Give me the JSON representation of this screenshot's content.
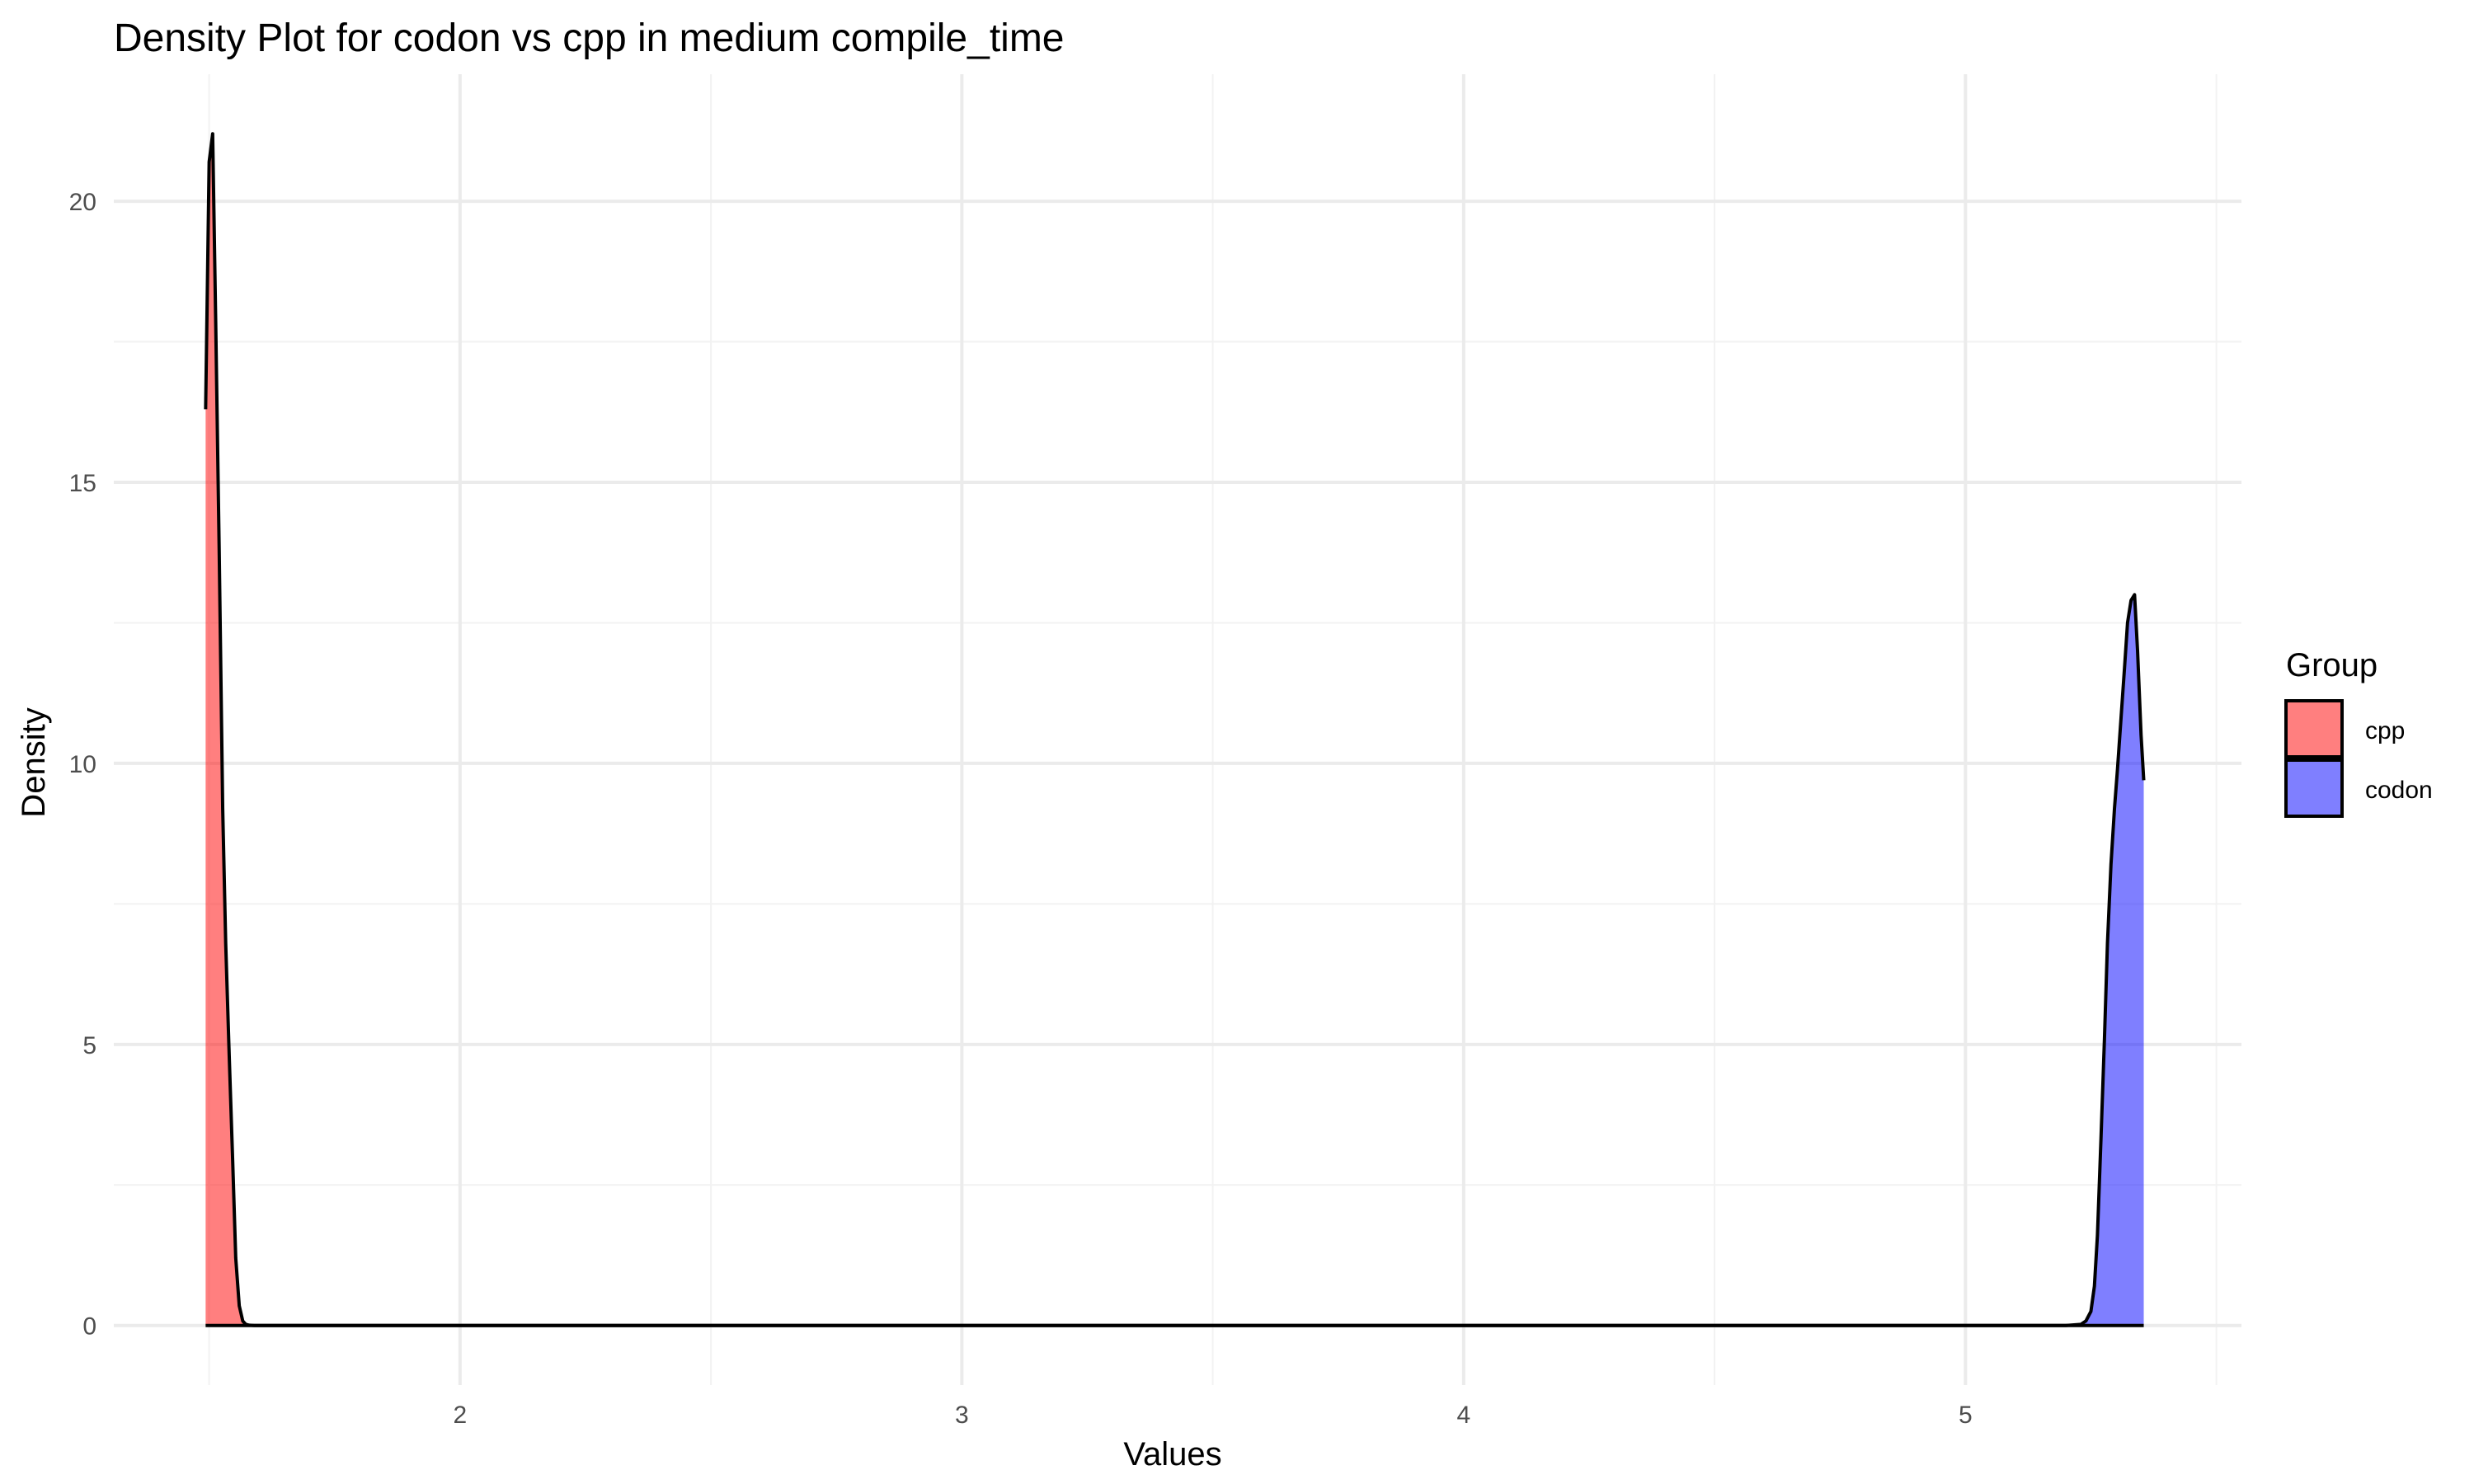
{
  "chart_data": {
    "type": "area",
    "title": "Density Plot for codon vs cpp in medium compile_time",
    "xlabel": "Values",
    "ylabel": "Density",
    "xlim": [
      1.31,
      5.55
    ],
    "ylim": [
      -1.06,
      22.26
    ],
    "x_ticks": [
      2,
      3,
      4,
      5
    ],
    "y_ticks": [
      0,
      5,
      10,
      15,
      20
    ],
    "grid": true,
    "legend": {
      "title": "Group",
      "position": "right",
      "entries": [
        {
          "name": "cpp",
          "color": "#ff0000"
        },
        {
          "name": "codon",
          "color": "#0000ff"
        }
      ]
    },
    "series": [
      {
        "name": "cpp",
        "color": "#ff0000",
        "fill_opacity": 0.5,
        "x": [
          1.493,
          1.5,
          1.507,
          1.513,
          1.52,
          1.527,
          1.533,
          1.54,
          1.547,
          1.553,
          1.56,
          1.567,
          1.573,
          1.58,
          1.59,
          1.6,
          1.65,
          1.7,
          1.8,
          2.0,
          2.5,
          3.0,
          3.5,
          4.0,
          4.5,
          5.0,
          5.2,
          5.25,
          5.3,
          5.3553
        ],
        "values": [
          16.3,
          20.7,
          21.2,
          17.9,
          13.8,
          9.2,
          6.8,
          4.8,
          2.9,
          1.2,
          0.35,
          0.08,
          0.02,
          0.005,
          0.0,
          0.0,
          0.0,
          0.0,
          0.0,
          0.0,
          0.0,
          0.0,
          0.0,
          0.0,
          0.0,
          0.0,
          0.0,
          0.0,
          0.0,
          0.0
        ]
      },
      {
        "name": "codon",
        "color": "#0000ff",
        "fill_opacity": 0.5,
        "x": [
          1.493,
          1.6,
          2.0,
          3.0,
          4.0,
          5.0,
          5.15,
          5.2,
          5.23,
          5.24,
          5.25,
          5.257,
          5.263,
          5.27,
          5.277,
          5.283,
          5.29,
          5.297,
          5.303,
          5.31,
          5.317,
          5.323,
          5.33,
          5.337,
          5.343,
          5.35,
          5.3553
        ],
        "values": [
          0.0,
          0.0,
          0.0,
          0.0,
          0.0,
          0.0,
          0.0,
          0.0,
          0.02,
          0.08,
          0.25,
          0.7,
          1.6,
          3.3,
          5.1,
          6.8,
          8.2,
          9.2,
          9.9,
          10.8,
          11.7,
          12.5,
          12.9,
          13.0,
          12.0,
          10.5,
          9.7
        ]
      }
    ]
  }
}
